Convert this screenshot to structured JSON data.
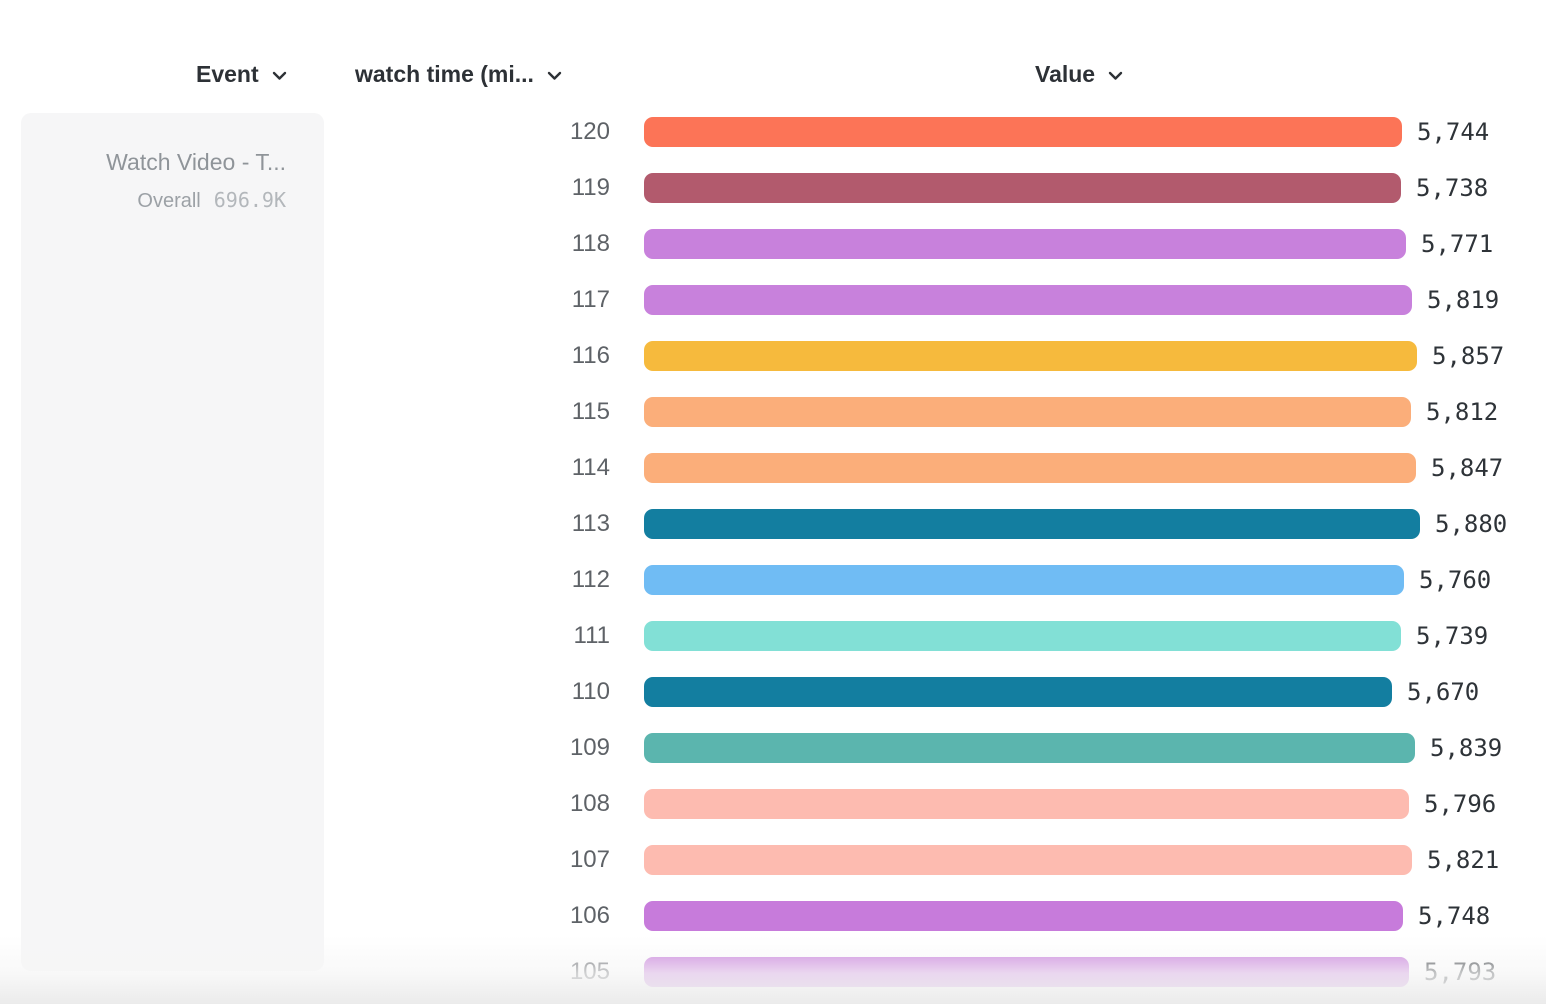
{
  "header": {
    "event_column_label": "Event",
    "measure_column_label": "watch time (mi...",
    "value_column_label": "Value"
  },
  "event_panel": {
    "title": "Watch Video - T...",
    "overall_label": "Overall",
    "overall_value": "696.9K"
  },
  "chart_data": {
    "type": "bar",
    "orientation": "horizontal",
    "title": "",
    "xlabel": "Value",
    "ylabel": "watch time (mi...",
    "categories": [
      "120",
      "119",
      "118",
      "117",
      "116",
      "115",
      "114",
      "113",
      "112",
      "111",
      "110",
      "109",
      "108",
      "107",
      "106",
      "105"
    ],
    "values": [
      5744,
      5738,
      5771,
      5819,
      5857,
      5812,
      5847,
      5880,
      5760,
      5739,
      5670,
      5839,
      5796,
      5821,
      5748,
      5793
    ],
    "value_labels": [
      "5,744",
      "5,738",
      "5,771",
      "5,819",
      "5,857",
      "5,812",
      "5,847",
      "5,880",
      "5,760",
      "5,739",
      "5,670",
      "5,839",
      "5,796",
      "5,821",
      "5,748",
      "5,793"
    ],
    "bar_colors": [
      "#FC7457",
      "#B25A6D",
      "#C881DC",
      "#C881DC",
      "#F6BA3D",
      "#FBAE7A",
      "#FBAE7A",
      "#137EA0",
      "#70BCF4",
      "#82E0D6",
      "#137EA0",
      "#5BB5AE",
      "#FDBBB0",
      "#FDBBB0",
      "#C77BDB",
      "#C77BDB"
    ],
    "xlim": [
      0,
      5880
    ],
    "grid": false,
    "legend": false
  },
  "colors": {
    "header_text": "#2d3136",
    "category_label": "#5e6267",
    "value_label": "#2e3338",
    "panel_background": "#f6f6f7"
  }
}
